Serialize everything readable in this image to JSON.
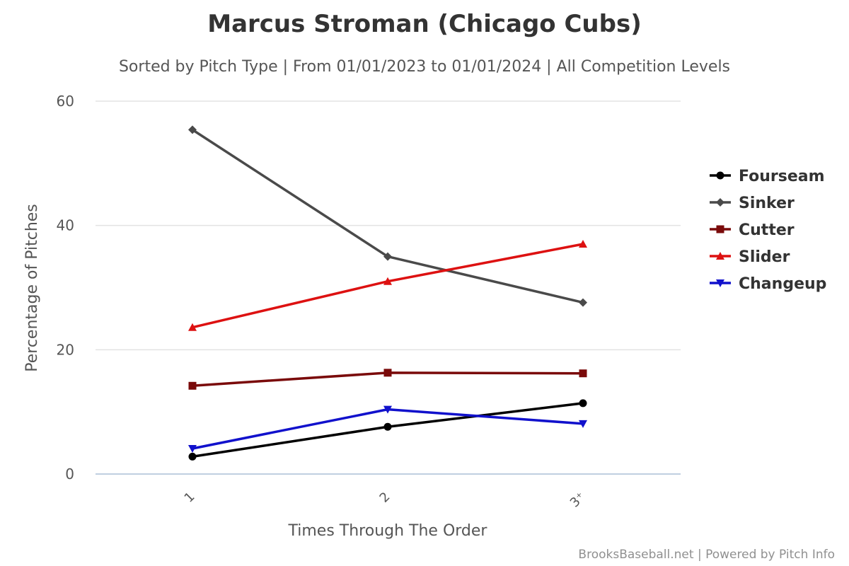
{
  "chart_data": {
    "type": "line",
    "title": "Marcus Stroman (Chicago Cubs)",
    "subtitle": "Sorted by Pitch Type | From 01/01/2023 to 01/01/2024 | All Competition Levels",
    "xlabel": "Times Through The Order",
    "ylabel": "Percentage of Pitches",
    "categories": [
      "1",
      "2",
      "3⁺"
    ],
    "ylim": [
      0,
      60
    ],
    "yticks": [
      "0",
      "20",
      "40",
      "60"
    ],
    "grid": true,
    "legend_position": "right",
    "series": [
      {
        "name": "Fourseam",
        "color": "#000000",
        "marker": "circle",
        "values": [
          2.8,
          7.6,
          11.4
        ]
      },
      {
        "name": "Sinker",
        "color": "#4a4a4a",
        "marker": "diamond",
        "values": [
          55.4,
          35.0,
          27.6
        ]
      },
      {
        "name": "Cutter",
        "color": "#7a0a0a",
        "marker": "square",
        "values": [
          14.2,
          16.3,
          16.2
        ]
      },
      {
        "name": "Slider",
        "color": "#dd1111",
        "marker": "triangle-up",
        "values": [
          23.6,
          31.0,
          37.0
        ]
      },
      {
        "name": "Changeup",
        "color": "#1111cc",
        "marker": "triangle-down",
        "values": [
          4.1,
          10.4,
          8.1
        ]
      }
    ]
  },
  "credits": "BrooksBaseball.net | Powered by Pitch Info"
}
